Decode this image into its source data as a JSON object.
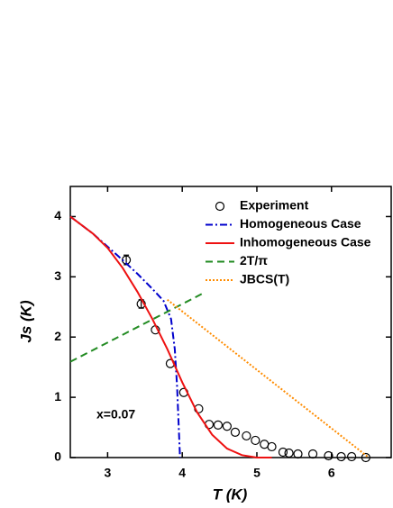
{
  "chart_data": {
    "type": "line",
    "xlabel": "T (K)",
    "ylabel": "Js (K)",
    "annotation": "x=0.07",
    "xlim": [
      2.5,
      6.8
    ],
    "xticks": [
      3,
      4,
      5,
      6
    ],
    "ylim": [
      0,
      4.5
    ],
    "yticks": [
      0,
      1,
      2,
      3,
      4
    ],
    "series": [
      {
        "name": "Experiment",
        "color": "#000000",
        "style": "none",
        "marker": "open-circle",
        "x": [
          3.25,
          3.45,
          3.64,
          3.84,
          4.02,
          4.22,
          4.36,
          4.48,
          4.6,
          4.71,
          4.86,
          4.98,
          5.1,
          5.2,
          5.35,
          5.43,
          5.55,
          5.75,
          5.96,
          6.13,
          6.27,
          6.46
        ],
        "values": [
          3.28,
          2.55,
          2.12,
          1.56,
          1.08,
          0.81,
          0.55,
          0.54,
          0.52,
          0.42,
          0.36,
          0.285,
          0.22,
          0.18,
          0.09,
          0.075,
          0.06,
          0.06,
          0.03,
          0.015,
          0.015,
          0
        ],
        "errors": [
          0.08,
          0.07,
          null,
          null,
          null,
          null,
          null,
          null,
          null,
          null,
          null,
          null,
          null,
          null,
          null,
          null,
          null,
          null,
          null,
          null,
          null,
          null
        ]
      },
      {
        "name": "Homogeneous Case",
        "color": "#0000cc",
        "style": "dashdot",
        "x": [
          2.5,
          2.8,
          3.0,
          3.2,
          3.4,
          3.6,
          3.75,
          3.85,
          3.9,
          3.93,
          3.95,
          3.97
        ],
        "values": [
          4.0,
          3.72,
          3.5,
          3.28,
          3.05,
          2.8,
          2.6,
          2.3,
          1.8,
          1.2,
          0.6,
          0
        ]
      },
      {
        "name": "Inhomogeneous Case",
        "color": "#ee1111",
        "style": "solid",
        "x": [
          2.5,
          2.8,
          3.0,
          3.2,
          3.4,
          3.6,
          3.8,
          4.0,
          4.2,
          4.4,
          4.6,
          4.8,
          5.0,
          5.2
        ],
        "values": [
          4.0,
          3.72,
          3.48,
          3.15,
          2.75,
          2.3,
          1.8,
          1.25,
          0.75,
          0.38,
          0.15,
          0.04,
          0,
          0
        ]
      },
      {
        "name": "2T/π",
        "color": "#228b22",
        "style": "dashed",
        "x": [
          2.5,
          4.3
        ],
        "values": [
          1.59,
          2.74
        ]
      },
      {
        "name": "JBCS(T)",
        "color": "#ff8c00",
        "style": "dotted",
        "x": [
          3.8,
          6.5
        ],
        "values": [
          2.62,
          0
        ]
      }
    ]
  }
}
